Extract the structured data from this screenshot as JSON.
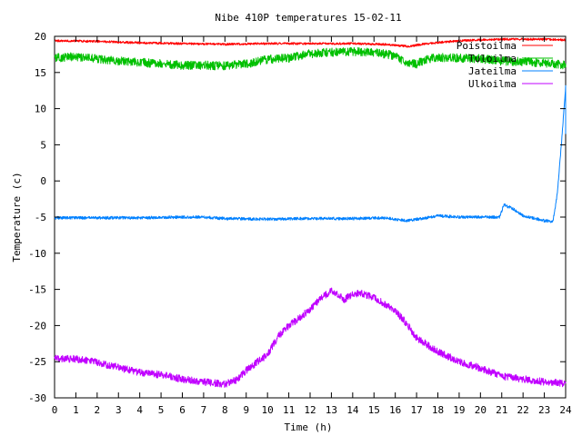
{
  "chart_data": {
    "type": "line",
    "title": "Nibe 410P temperatures 15-02-11",
    "xlabel": "Time (h)",
    "ylabel": "Temperature (c)",
    "xlim": [
      0,
      24
    ],
    "ylim": [
      -30,
      20
    ],
    "xticks": [
      0,
      1,
      2,
      3,
      4,
      5,
      6,
      7,
      8,
      9,
      10,
      11,
      12,
      13,
      14,
      15,
      16,
      17,
      18,
      19,
      20,
      21,
      22,
      23,
      24
    ],
    "yticks": [
      -30,
      -25,
      -20,
      -15,
      -10,
      -5,
      0,
      5,
      10,
      15,
      20
    ],
    "grid": false,
    "legend_position": "top-right",
    "series": [
      {
        "name": "Poistoilma",
        "color": "#ff0000",
        "noise": 0.15,
        "points": [
          [
            0,
            19.4
          ],
          [
            2,
            19.3
          ],
          [
            4,
            19.1
          ],
          [
            6,
            19.0
          ],
          [
            8,
            18.9
          ],
          [
            10,
            19.0
          ],
          [
            12,
            19.0
          ],
          [
            14,
            19.0
          ],
          [
            15.5,
            18.9
          ],
          [
            16.6,
            18.6
          ],
          [
            17.5,
            19.0
          ],
          [
            19,
            19.4
          ],
          [
            21,
            19.6
          ],
          [
            23,
            19.6
          ],
          [
            24,
            19.5
          ]
        ]
      },
      {
        "name": "Tuloilma",
        "color": "#00c000",
        "noise": 0.6,
        "points": [
          [
            0,
            17.0
          ],
          [
            1,
            17.2
          ],
          [
            2,
            16.9
          ],
          [
            3,
            16.6
          ],
          [
            4,
            16.4
          ],
          [
            5,
            16.2
          ],
          [
            6,
            16.0
          ],
          [
            7,
            16.0
          ],
          [
            8,
            15.9
          ],
          [
            9,
            16.2
          ],
          [
            10,
            16.8
          ],
          [
            11,
            17.0
          ],
          [
            12,
            17.6
          ],
          [
            13,
            17.8
          ],
          [
            14,
            17.9
          ],
          [
            15,
            17.8
          ],
          [
            16,
            17.3
          ],
          [
            16.5,
            16.4
          ],
          [
            17,
            16.2
          ],
          [
            17.5,
            16.8
          ],
          [
            18,
            17.1
          ],
          [
            19,
            17.0
          ],
          [
            20,
            16.9
          ],
          [
            21,
            16.6
          ],
          [
            22,
            16.5
          ],
          [
            23,
            16.3
          ],
          [
            24,
            16.0
          ]
        ]
      },
      {
        "name": "Jateilma",
        "color": "#0080ff",
        "noise": 0.2,
        "points": [
          [
            0,
            -5.1
          ],
          [
            2,
            -5.1
          ],
          [
            4,
            -5.1
          ],
          [
            6,
            -5.0
          ],
          [
            7,
            -5.0
          ],
          [
            8,
            -5.2
          ],
          [
            10,
            -5.3
          ],
          [
            12,
            -5.2
          ],
          [
            14,
            -5.2
          ],
          [
            15.5,
            -5.1
          ],
          [
            16.5,
            -5.5
          ],
          [
            17.5,
            -5.1
          ],
          [
            18,
            -4.8
          ],
          [
            19,
            -5.0
          ],
          [
            20,
            -5.0
          ],
          [
            20.9,
            -5.0
          ],
          [
            21.1,
            -3.3
          ],
          [
            21.5,
            -3.8
          ],
          [
            22,
            -4.8
          ],
          [
            23,
            -5.5
          ],
          [
            23.4,
            -5.6
          ],
          [
            23.6,
            -2.0
          ],
          [
            23.8,
            5.0
          ],
          [
            23.95,
            11.0
          ],
          [
            24.0,
            13.0
          ],
          [
            24.0,
            6.5
          ]
        ]
      },
      {
        "name": "Ulkoilma",
        "color": "#c000ff",
        "noise": 0.5,
        "points": [
          [
            0,
            -24.6
          ],
          [
            1,
            -24.6
          ],
          [
            2,
            -25.1
          ],
          [
            3,
            -25.8
          ],
          [
            4,
            -26.5
          ],
          [
            5,
            -26.8
          ],
          [
            6,
            -27.4
          ],
          [
            7,
            -27.8
          ],
          [
            8,
            -28.1
          ],
          [
            8.6,
            -27.5
          ],
          [
            9,
            -26.2
          ],
          [
            10,
            -24.0
          ],
          [
            10.5,
            -21.5
          ],
          [
            11,
            -20.0
          ],
          [
            12,
            -17.8
          ],
          [
            12.5,
            -16.2
          ],
          [
            13,
            -15.2
          ],
          [
            13.6,
            -16.4
          ],
          [
            14,
            -15.7
          ],
          [
            14.4,
            -15.5
          ],
          [
            15,
            -16.2
          ],
          [
            15.5,
            -17.0
          ],
          [
            16,
            -18.0
          ],
          [
            16.5,
            -19.6
          ],
          [
            17,
            -21.7
          ],
          [
            18,
            -23.6
          ],
          [
            19,
            -25.0
          ],
          [
            20,
            -25.9
          ],
          [
            21,
            -27.0
          ],
          [
            22,
            -27.4
          ],
          [
            23,
            -27.8
          ],
          [
            24,
            -28.0
          ]
        ]
      }
    ]
  }
}
